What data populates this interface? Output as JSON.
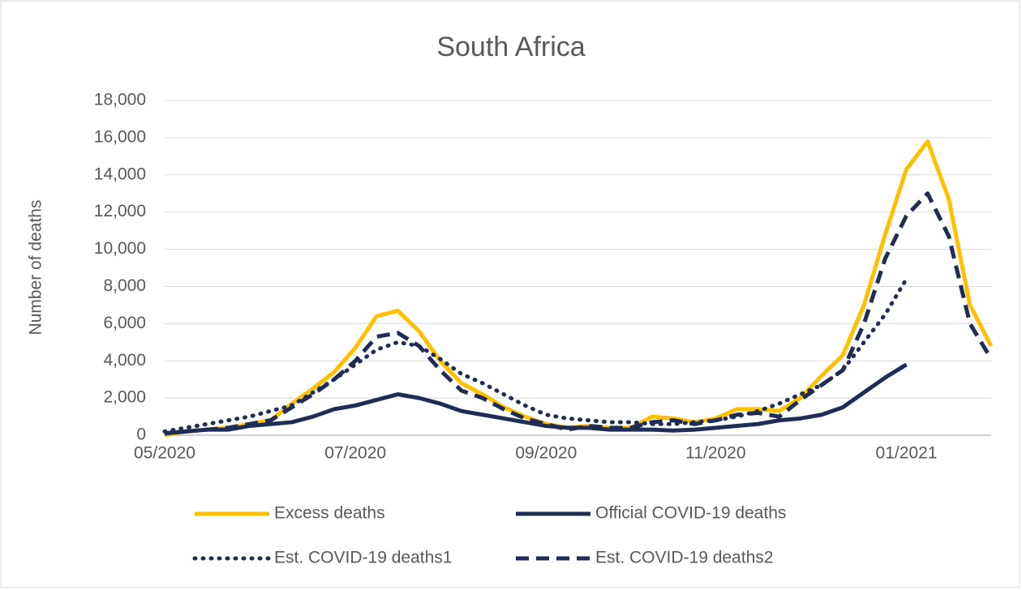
{
  "chart_data": {
    "type": "line",
    "title": "South Africa",
    "y_label": "Number of deaths",
    "categories": [
      "05/2020",
      null,
      null,
      null,
      null,
      null,
      null,
      null,
      null,
      "07/2020",
      null,
      null,
      null,
      null,
      null,
      null,
      null,
      null,
      "09/2020",
      null,
      null,
      null,
      null,
      null,
      null,
      null,
      "11/2020",
      null,
      null,
      null,
      null,
      null,
      null,
      null,
      null,
      "01/2021",
      null,
      null,
      null,
      null
    ],
    "series": [
      {
        "name": "Excess deaths",
        "color": "#FFC000",
        "line_style": "solid",
        "values": [
          0,
          200,
          300,
          400,
          600,
          800,
          1700,
          2500,
          3400,
          4700,
          6400,
          6700,
          5600,
          4000,
          2800,
          2200,
          1500,
          1000,
          600,
          400,
          500,
          400,
          400,
          1000,
          900,
          700,
          900,
          1400,
          1400,
          1300,
          2000,
          3200,
          4300,
          7000,
          10800,
          14300,
          15800,
          12700,
          7000,
          4800
        ]
      },
      {
        "name": "Official COVID-19 deaths",
        "color": "#1F2D55",
        "line_style": "solid",
        "values": [
          100,
          200,
          300,
          300,
          500,
          600,
          700,
          1000,
          1400,
          1600,
          1900,
          2200,
          2000,
          1700,
          1300,
          1100,
          900,
          700,
          500,
          400,
          400,
          300,
          300,
          300,
          250,
          300,
          400,
          500,
          600,
          800,
          900,
          1100,
          1500,
          2300,
          3100,
          3800,
          null,
          null,
          null,
          null
        ]
      },
      {
        "name": "Est. COVID-19 deaths1",
        "color": "#1F2D55",
        "line_style": "dotted",
        "values": [
          200,
          400,
          600,
          800,
          1000,
          1300,
          1600,
          2300,
          3000,
          3800,
          4600,
          5000,
          4800,
          4100,
          3300,
          2800,
          2200,
          1600,
          1100,
          900,
          800,
          700,
          700,
          600,
          600,
          700,
          800,
          1000,
          1300,
          1700,
          2200,
          2700,
          3500,
          5000,
          6500,
          8400,
          null,
          null,
          null,
          null
        ]
      },
      {
        "name": "Est. COVID-19 deaths2",
        "color": "#1F2D55",
        "line_style": "dashed",
        "values": [
          100,
          200,
          300,
          400,
          600,
          800,
          1500,
          2200,
          3000,
          4000,
          5300,
          5500,
          4800,
          3500,
          2400,
          2000,
          1400,
          900,
          600,
          300,
          500,
          400,
          400,
          700,
          800,
          600,
          800,
          1100,
          1200,
          1000,
          1900,
          2700,
          3500,
          6000,
          9500,
          11800,
          13000,
          10700,
          6000,
          4100
        ]
      }
    ],
    "ylim": [
      0,
      18000
    ],
    "yticks": [
      0,
      {
        "value": 2000,
        "label": "2,000"
      },
      {
        "value": 4000,
        "label": "4,000"
      },
      {
        "value": 6000,
        "label": "6,000"
      },
      {
        "value": 8000,
        "label": "8,000"
      },
      {
        "value": 10000,
        "label": "10,000"
      },
      {
        "value": 12000,
        "label": "12,000"
      },
      {
        "value": 14000,
        "label": "14,000"
      },
      {
        "value": 16000,
        "label": "16,000"
      },
      {
        "value": 18000,
        "label": "18,000"
      }
    ],
    "grid": true,
    "legend": "bottom"
  }
}
